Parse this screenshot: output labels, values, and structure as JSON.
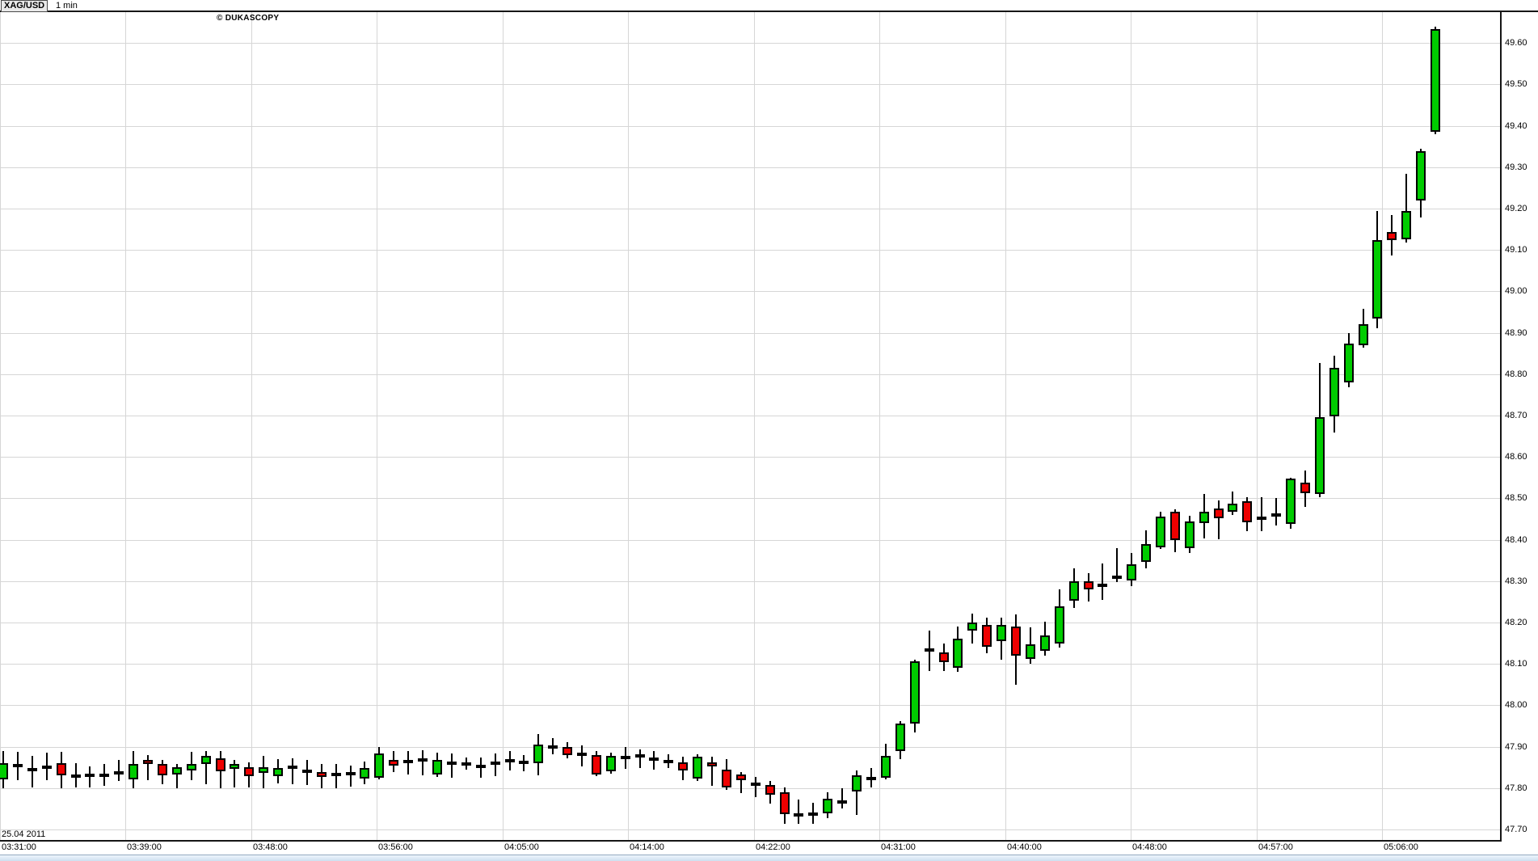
{
  "header": {
    "symbol": "XAG/USD",
    "timeframe": "1 min",
    "copyright": "© DUKASCOPY"
  },
  "x_axis": {
    "date_label": "25.04 2011",
    "labels": [
      "03:31:00",
      "03:39:00",
      "03:48:00",
      "03:56:00",
      "04:05:00",
      "04:14:00",
      "04:22:00",
      "04:31:00",
      "04:40:00",
      "04:48:00",
      "04:57:00",
      "05:06:00"
    ]
  },
  "y_axis": {
    "labels": [
      "49.60",
      "49.50",
      "49.40",
      "49.30",
      "49.20",
      "49.10",
      "49.00",
      "48.90",
      "48.80",
      "48.70",
      "48.60",
      "48.50",
      "48.40",
      "48.30",
      "48.20",
      "48.10",
      "48.00",
      "47.90",
      "47.80",
      "47.70"
    ]
  },
  "chart_data": {
    "type": "candlestick",
    "title": "XAG/USD 1 min",
    "symbol": "XAG/USD",
    "interval": "1 min",
    "date": "25.04 2011",
    "ylim": [
      47.65,
      49.675
    ],
    "grid": true,
    "colors": {
      "up": "#00CC00",
      "down": "#EE0000",
      "outline": "#000000",
      "grid": "#d6d6d6"
    },
    "ohlc_fields": [
      "time",
      "open",
      "high",
      "low",
      "close"
    ],
    "candles": [
      [
        "03:30",
        47.82,
        47.89,
        47.8,
        47.86
      ],
      [
        "03:31",
        47.852,
        47.888,
        47.82,
        47.855
      ],
      [
        "03:32",
        47.84,
        47.878,
        47.802,
        47.848
      ],
      [
        "03:33",
        47.85,
        47.886,
        47.82,
        47.852
      ],
      [
        "03:34",
        47.86,
        47.888,
        47.8,
        47.83
      ],
      [
        "03:35",
        47.828,
        47.86,
        47.802,
        47.83
      ],
      [
        "03:36",
        47.83,
        47.852,
        47.802,
        47.832
      ],
      [
        "03:37",
        47.828,
        47.858,
        47.806,
        47.834
      ],
      [
        "03:38",
        47.832,
        47.868,
        47.818,
        47.84
      ],
      [
        "03:39",
        47.82,
        47.89,
        47.8,
        47.858
      ],
      [
        "03:40",
        47.868,
        47.88,
        47.82,
        47.858
      ],
      [
        "03:41",
        47.858,
        47.868,
        47.81,
        47.83
      ],
      [
        "03:42",
        47.832,
        47.858,
        47.8,
        47.85
      ],
      [
        "03:43",
        47.842,
        47.888,
        47.82,
        47.858
      ],
      [
        "03:44",
        47.858,
        47.89,
        47.81,
        47.878
      ],
      [
        "03:45",
        47.872,
        47.89,
        47.8,
        47.84
      ],
      [
        "03:46",
        47.846,
        47.868,
        47.802,
        47.858
      ],
      [
        "03:47",
        47.85,
        47.862,
        47.802,
        47.828
      ],
      [
        "03:48",
        47.836,
        47.878,
        47.8,
        47.85
      ],
      [
        "03:49",
        47.828,
        47.87,
        47.812,
        47.848
      ],
      [
        "03:50",
        47.85,
        47.872,
        47.81,
        47.85
      ],
      [
        "03:51",
        47.844,
        47.868,
        47.808,
        47.836
      ],
      [
        "03:52",
        47.838,
        47.858,
        47.8,
        47.826
      ],
      [
        "03:53",
        47.832,
        47.858,
        47.8,
        47.834
      ],
      [
        "03:54",
        47.838,
        47.854,
        47.804,
        47.83
      ],
      [
        "03:55",
        47.823,
        47.864,
        47.81,
        47.848
      ],
      [
        "03:56",
        47.826,
        47.9,
        47.822,
        47.884
      ],
      [
        "03:57",
        47.868,
        47.89,
        47.84,
        47.855
      ],
      [
        "03:58",
        47.864,
        47.89,
        47.834,
        47.866
      ],
      [
        "03:59",
        47.868,
        47.892,
        47.832,
        47.868
      ],
      [
        "04:00",
        47.832,
        47.886,
        47.828,
        47.868
      ],
      [
        "04:01",
        47.86,
        47.884,
        47.826,
        47.86
      ],
      [
        "04:02",
        47.858,
        47.874,
        47.844,
        47.858
      ],
      [
        "04:03",
        47.855,
        47.874,
        47.826,
        47.848
      ],
      [
        "04:04",
        47.86,
        47.884,
        47.83,
        47.86
      ],
      [
        "04:05",
        47.866,
        47.89,
        47.844,
        47.866
      ],
      [
        "04:06",
        47.866,
        47.88,
        47.84,
        47.858
      ],
      [
        "04:07",
        47.861,
        47.93,
        47.83,
        47.906
      ],
      [
        "04:08",
        47.9,
        47.92,
        47.88,
        47.9
      ],
      [
        "04:09",
        47.9,
        47.91,
        47.87,
        47.88
      ],
      [
        "04:10",
        47.88,
        47.904,
        47.854,
        47.882
      ],
      [
        "04:11",
        47.88,
        47.89,
        47.83,
        47.834
      ],
      [
        "04:12",
        47.84,
        47.886,
        47.836,
        47.878
      ],
      [
        "04:13",
        47.874,
        47.9,
        47.848,
        47.874
      ],
      [
        "04:14",
        47.88,
        47.894,
        47.85,
        47.874
      ],
      [
        "04:15",
        47.87,
        47.89,
        47.846,
        47.87
      ],
      [
        "04:16",
        47.864,
        47.882,
        47.848,
        47.864
      ],
      [
        "04:17",
        47.862,
        47.876,
        47.82,
        47.842
      ],
      [
        "04:18",
        47.824,
        47.882,
        47.818,
        47.876
      ],
      [
        "04:19",
        47.862,
        47.876,
        47.806,
        47.852
      ],
      [
        "04:20",
        47.844,
        47.87,
        47.796,
        47.802
      ],
      [
        "04:21",
        47.832,
        47.838,
        47.788,
        47.818
      ],
      [
        "04:22",
        47.812,
        47.826,
        47.778,
        47.806
      ],
      [
        "04:23",
        47.808,
        47.818,
        47.764,
        47.785
      ],
      [
        "04:24",
        47.79,
        47.802,
        47.714,
        47.738
      ],
      [
        "04:25",
        47.735,
        47.772,
        47.714,
        47.736
      ],
      [
        "04:26",
        47.738,
        47.764,
        47.714,
        47.738
      ],
      [
        "04:27",
        47.738,
        47.79,
        47.728,
        47.774
      ],
      [
        "04:28",
        47.762,
        47.8,
        47.752,
        47.77
      ],
      [
        "04:29",
        47.79,
        47.842,
        47.734,
        47.83
      ],
      [
        "04:30",
        47.822,
        47.848,
        47.802,
        47.823
      ],
      [
        "04:31",
        47.826,
        47.908,
        47.822,
        47.878
      ],
      [
        "04:32",
        47.89,
        47.962,
        47.87,
        47.956
      ],
      [
        "04:33",
        47.956,
        48.11,
        47.934,
        48.106
      ],
      [
        "04:34",
        48.138,
        48.18,
        48.082,
        48.13
      ],
      [
        "04:35",
        48.128,
        48.15,
        48.084,
        48.104
      ],
      [
        "04:36",
        48.09,
        48.19,
        48.08,
        48.16
      ],
      [
        "04:37",
        48.18,
        48.222,
        48.15,
        48.2
      ],
      [
        "04:38",
        48.194,
        48.212,
        48.126,
        48.142
      ],
      [
        "04:39",
        48.154,
        48.212,
        48.11,
        48.194
      ],
      [
        "04:40",
        48.19,
        48.22,
        48.05,
        48.12
      ],
      [
        "04:41",
        48.112,
        48.188,
        48.1,
        48.148
      ],
      [
        "04:42",
        48.13,
        48.202,
        48.12,
        48.168
      ],
      [
        "04:43",
        48.15,
        48.28,
        48.14,
        48.24
      ],
      [
        "04:44",
        48.254,
        48.33,
        48.234,
        48.3
      ],
      [
        "04:45",
        48.3,
        48.32,
        48.252,
        48.28
      ],
      [
        "04:46",
        48.288,
        48.342,
        48.254,
        48.29
      ],
      [
        "04:47",
        48.308,
        48.38,
        48.298,
        48.312
      ],
      [
        "04:48",
        48.3,
        48.368,
        48.288,
        48.34
      ],
      [
        "04:49",
        48.348,
        48.422,
        48.33,
        48.39
      ],
      [
        "04:50",
        48.382,
        48.468,
        48.378,
        48.456
      ],
      [
        "04:51",
        48.468,
        48.474,
        48.37,
        48.4
      ],
      [
        "04:52",
        48.38,
        48.458,
        48.368,
        48.444
      ],
      [
        "04:53",
        48.44,
        48.51,
        48.402,
        48.468
      ],
      [
        "04:54",
        48.476,
        48.494,
        48.4,
        48.452
      ],
      [
        "04:55",
        48.468,
        48.516,
        48.46,
        48.488
      ],
      [
        "04:56",
        48.492,
        48.502,
        48.42,
        48.442
      ],
      [
        "04:57",
        48.45,
        48.502,
        48.42,
        48.452
      ],
      [
        "04:58",
        48.46,
        48.5,
        48.434,
        48.46
      ],
      [
        "04:59",
        48.438,
        48.55,
        48.426,
        48.548
      ],
      [
        "05:00",
        48.538,
        48.568,
        48.48,
        48.512
      ],
      [
        "05:01",
        48.51,
        48.826,
        48.502,
        48.696
      ],
      [
        "05:02",
        48.698,
        48.845,
        48.66,
        48.816
      ],
      [
        "05:03",
        48.78,
        48.9,
        48.77,
        48.874
      ],
      [
        "05:04",
        48.87,
        48.958,
        48.864,
        48.92
      ],
      [
        "05:05",
        48.934,
        49.194,
        48.91,
        49.124
      ],
      [
        "05:06",
        49.144,
        49.184,
        49.086,
        49.124
      ],
      [
        "05:07",
        49.126,
        49.284,
        49.118,
        49.194
      ],
      [
        "05:08",
        49.218,
        49.344,
        49.178,
        49.338
      ],
      [
        "05:09",
        49.386,
        49.64,
        49.38,
        49.634
      ]
    ]
  }
}
